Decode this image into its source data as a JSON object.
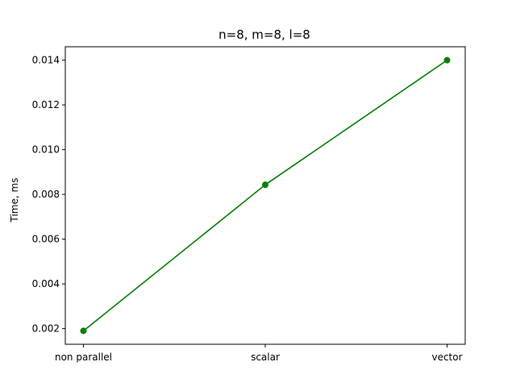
{
  "chart_data": {
    "type": "line",
    "title": "n=8, m=8, l=8",
    "xlabel": "",
    "ylabel": "Time, ms",
    "categories": [
      "non parallel",
      "scalar",
      "vector"
    ],
    "series": [
      {
        "values": [
          0.0019,
          0.00843,
          0.014
        ],
        "color": "#008000",
        "marker": "circle"
      }
    ],
    "ylim": [
      0.0013,
      0.0146
    ],
    "yticks": [
      0.002,
      0.004,
      0.006,
      0.008,
      0.01,
      0.012,
      0.014
    ],
    "ytick_labels": [
      "0.002",
      "0.004",
      "0.006",
      "0.008",
      "0.010",
      "0.012",
      "0.014"
    ],
    "grid": false,
    "legend": "none"
  }
}
